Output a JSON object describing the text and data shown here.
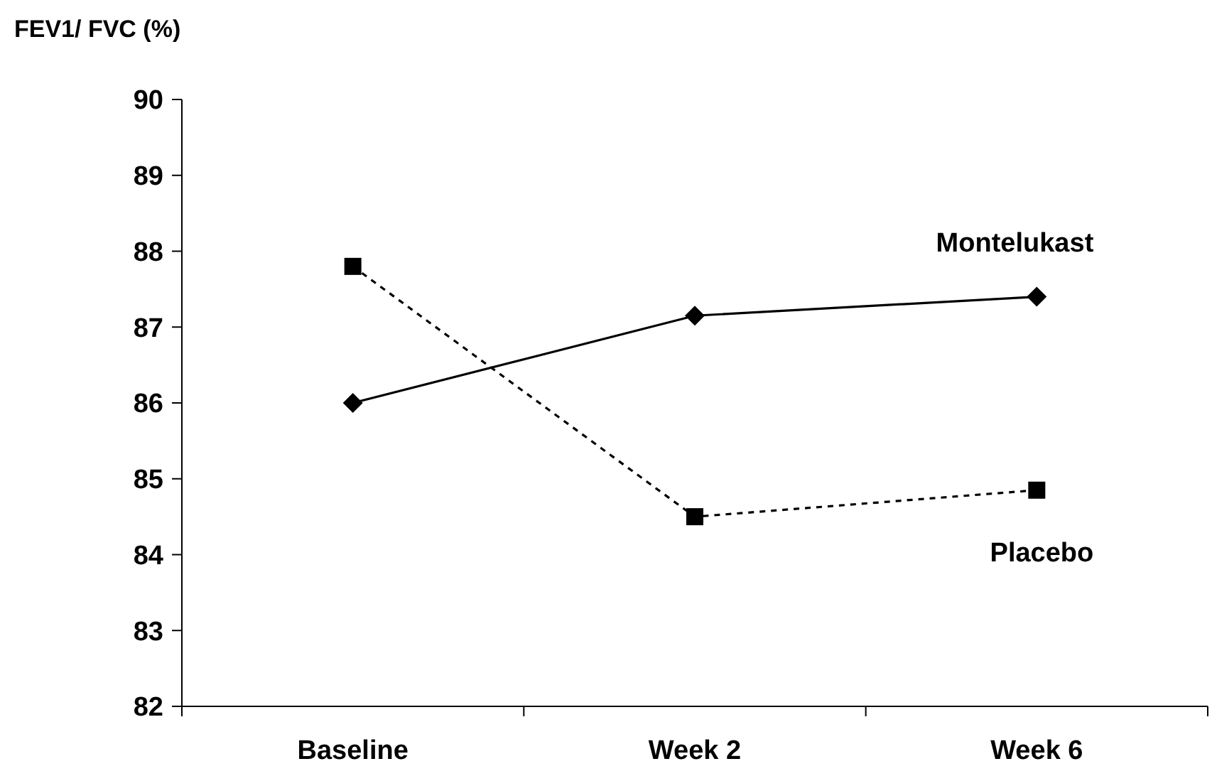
{
  "chart_data": {
    "type": "line",
    "ylabel": "FEV1/ FVC (%)",
    "categories": [
      "Baseline",
      "Week 2",
      "Week 6"
    ],
    "series": [
      {
        "name": "Montelukast",
        "color": "#000000",
        "values": [
          86.0,
          87.15,
          87.4
        ],
        "marker": "diamond",
        "line_style": "solid"
      },
      {
        "name": "Placebo",
        "color": "#000000",
        "values": [
          87.8,
          84.5,
          84.85
        ],
        "marker": "square",
        "line_style": "dashed"
      }
    ],
    "ylim": [
      82,
      90
    ],
    "yticks": [
      82,
      83,
      84,
      85,
      86,
      87,
      88,
      89,
      90
    ],
    "grid": false,
    "legend": false
  }
}
